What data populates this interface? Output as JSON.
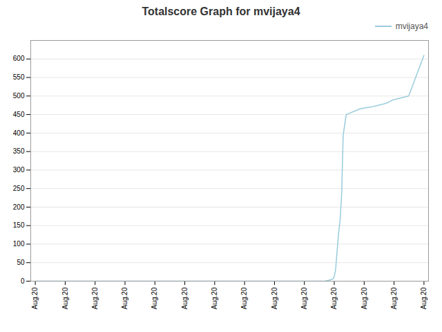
{
  "chart_data": {
    "type": "line",
    "title": "Totalscore Graph for mvijaya4",
    "x": [
      0,
      1,
      2,
      3,
      4,
      5,
      6,
      7,
      8,
      9,
      10,
      11,
      12,
      13,
      14,
      15,
      16,
      17,
      18,
      19,
      19.5,
      19.6,
      19.7,
      19.8,
      19.9,
      20.0,
      20.1,
      20.2,
      20.4,
      20.7,
      21.0,
      21.3,
      21.6,
      22,
      22.5,
      23,
      23.5,
      24,
      24.5,
      25.5
    ],
    "series": [
      {
        "name": "mvijaya4",
        "color": "#99ccdd",
        "values": [
          0,
          0,
          0,
          0,
          0,
          0,
          0,
          0,
          0,
          0,
          0,
          0,
          0,
          0,
          0,
          0,
          0,
          0,
          0,
          0,
          5,
          10,
          30,
          80,
          130,
          165,
          235,
          395,
          450,
          455,
          460,
          465,
          468,
          470,
          475,
          480,
          490,
          495,
          500,
          610
        ]
      }
    ],
    "xlim": [
      -0.3,
      25.8
    ],
    "xticks": [
      {
        "value": 0,
        "label": "Aug.20"
      },
      {
        "value": 1.9615384615384615,
        "label": "Aug.20"
      },
      {
        "value": 3.923076923076923,
        "label": "Aug.20"
      },
      {
        "value": 5.884615384615385,
        "label": "Aug.20"
      },
      {
        "value": 7.846153846153846,
        "label": "Aug.20"
      },
      {
        "value": 9.807692307692308,
        "label": "Aug.20"
      },
      {
        "value": 11.76923076923077,
        "label": "Aug.20"
      },
      {
        "value": 13.73076923076923,
        "label": "Aug.20"
      },
      {
        "value": 15.692307692307692,
        "label": "Aug.20"
      },
      {
        "value": 17.653846153846153,
        "label": "Aug.20"
      },
      {
        "value": 19.615384615384617,
        "label": "Aug.20"
      },
      {
        "value": 21.576923076923077,
        "label": "Aug.20"
      },
      {
        "value": 23.53846153846154,
        "label": "Aug.20"
      },
      {
        "value": 25.5,
        "label": "Aug.20"
      }
    ],
    "ylim": [
      0,
      650
    ],
    "yticks": [
      0,
      50,
      100,
      150,
      200,
      250,
      300,
      350,
      400,
      450,
      500,
      550,
      600
    ],
    "grid": true,
    "legend": "upper right"
  }
}
